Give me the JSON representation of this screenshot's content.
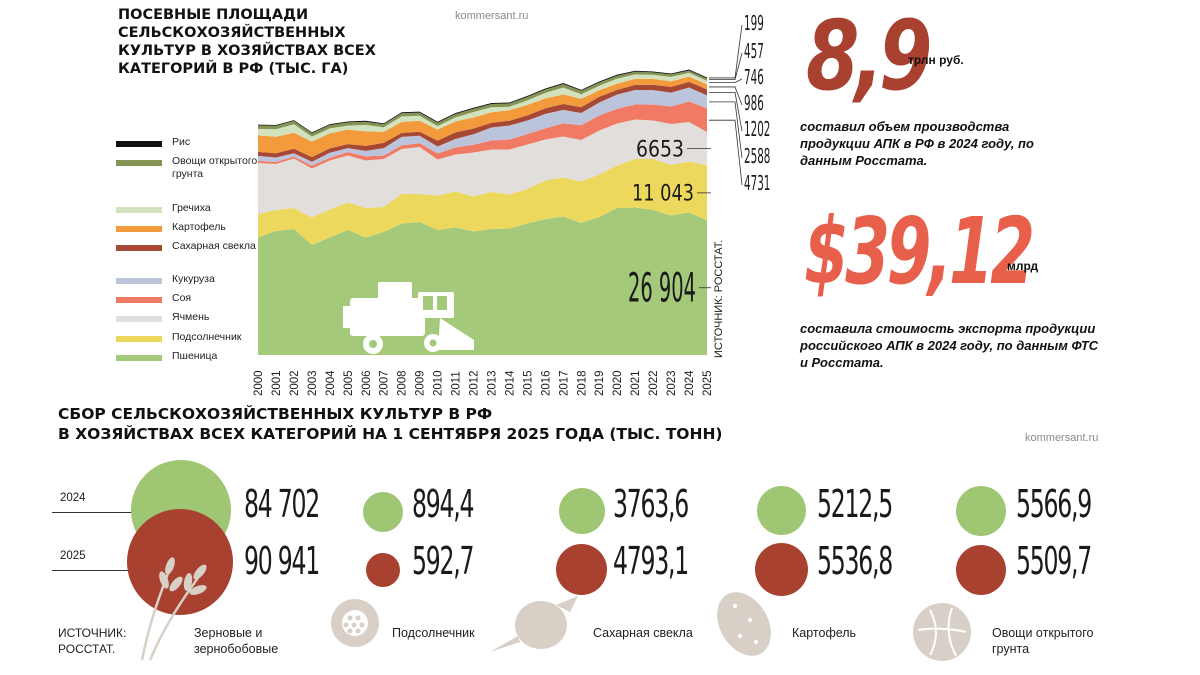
{
  "site": "kommersant.ru",
  "area_chart": {
    "title": "ПОСЕВНЫЕ ПЛОЩАДИ СЕЛЬСКОХОЗЯЙСТВЕННЫХ КУЛЬТУР В ХОЗЯЙСТВАХ ВСЕХ КАТЕГОРИЙ В РФ (ТЫС. ГА)",
    "source": "ИСТОЧНИК: РОССТАТ."
  },
  "chart_data": {
    "type": "area",
    "stacked": true,
    "x": [
      "2000",
      "2001",
      "2002",
      "2003",
      "2004",
      "2005",
      "2006",
      "2007",
      "2008",
      "2009",
      "2010",
      "2011",
      "2012",
      "2013",
      "2014",
      "2015",
      "2016",
      "2017",
      "2018",
      "2019",
      "2020",
      "2021",
      "2022",
      "2023",
      "2024",
      "2025"
    ],
    "series": [
      {
        "name": "Пшеница",
        "color": "#a4c97a",
        "values": [
          23500,
          24800,
          25200,
          22000,
          23500,
          25000,
          23500,
          24600,
          26300,
          26600,
          25000,
          25500,
          24700,
          25200,
          25300,
          26300,
          27200,
          27700,
          26400,
          27600,
          29400,
          29500,
          29000,
          27900,
          28500,
          26904
        ]
      },
      {
        "name": "Подсолнечник",
        "color": "#ecd85c",
        "values": [
          4700,
          4200,
          4200,
          5500,
          5600,
          5500,
          5900,
          5000,
          5900,
          5600,
          6900,
          7200,
          7000,
          7400,
          6800,
          6900,
          7700,
          7800,
          8300,
          8500,
          8500,
          9700,
          10200,
          10100,
          10200,
          11043
        ]
      },
      {
        "name": "Ячмень",
        "color": "#e2dedb",
        "values": [
          10200,
          9200,
          9900,
          9800,
          9800,
          9400,
          9500,
          9600,
          9000,
          9400,
          7200,
          7400,
          8800,
          8500,
          9000,
          8900,
          8200,
          8200,
          8300,
          8800,
          8400,
          7900,
          7700,
          8200,
          7900,
          6653
        ]
      },
      {
        "name": "Соя",
        "color": "#f07a64",
        "values": [
          420,
          400,
          410,
          560,
          550,
          680,
          820,
          680,
          730,
          740,
          1210,
          1420,
          1550,
          1800,
          2000,
          2100,
          2230,
          2620,
          2950,
          3000,
          2940,
          3000,
          3170,
          3500,
          4100,
          4731
        ]
      },
      {
        "name": "Кукуруза",
        "color": "#bcc4dc",
        "values": [
          1000,
          900,
          650,
          800,
          1000,
          800,
          1100,
          1500,
          1700,
          1500,
          1400,
          1700,
          2100,
          2600,
          2800,
          2700,
          2900,
          2700,
          2450,
          2600,
          2860,
          2890,
          2900,
          2780,
          2800,
          2588
        ]
      },
      {
        "name": "Сахарная свекла",
        "color": "#a74834",
        "values": [
          800,
          850,
          890,
          920,
          880,
          800,
          1000,
          1050,
          800,
          800,
          1170,
          1300,
          1150,
          940,
          950,
          1030,
          1110,
          1190,
          1150,
          1150,
          930,
          1030,
          1090,
          1150,
          1130,
          1202
        ]
      },
      {
        "name": "Картофель",
        "color": "#f29a3c",
        "values": [
          3300,
          3300,
          3200,
          3100,
          3000,
          2900,
          2900,
          2200,
          2200,
          2200,
          2200,
          2200,
          2200,
          2100,
          2100,
          2100,
          1980,
          1900,
          1700,
          1300,
          1250,
          1200,
          1160,
          1100,
          1040,
          986
        ]
      },
      {
        "name": "Гречиха",
        "color": "#d2e2bc",
        "values": [
          1300,
          1500,
          1700,
          1000,
          1000,
          800,
          1300,
          900,
          1100,
          1000,
          700,
          800,
          1100,
          1000,
          700,
          900,
          1100,
          1400,
          900,
          900,
          1000,
          900,
          800,
          900,
          760,
          746
        ]
      },
      {
        "name": "Овощи открытого грунта",
        "color": "#839455",
        "values": [
          700,
          710,
          680,
          680,
          670,
          650,
          640,
          620,
          640,
          640,
          660,
          670,
          650,
          660,
          670,
          690,
          690,
          700,
          690,
          650,
          600,
          550,
          510,
          490,
          470,
          457
        ]
      },
      {
        "name": "Рис",
        "color": "#111111",
        "values": [
          165,
          150,
          150,
          170,
          170,
          170,
          180,
          180,
          180,
          200,
          200,
          200,
          200,
          190,
          190,
          200,
          200,
          190,
          190,
          190,
          190,
          190,
          180,
          180,
          190,
          199
        ]
      }
    ],
    "end_labels": [
      "199",
      "457",
      "746",
      "986",
      "1202",
      "2588",
      "4731",
      "6653",
      "11 043",
      "26 904"
    ]
  },
  "stats": {
    "production_value": "8,9",
    "production_unit": "трлн руб.",
    "production_text": "составил объем производства продукции АПК в РФ в 2024 году, по данным Росстата.",
    "export_value": "$39,12",
    "export_unit": "млрд",
    "export_text": "составила стоимость экспорта продукции российского АПК в 2024 году, по данным ФТС и Росстата."
  },
  "harvest": {
    "title_line1": "СБОР СЕЛЬСКОХОЗЯЙСТВЕННЫХ КУЛЬТУР В РФ",
    "title_line2": "В ХОЗЯЙСТВАХ ВСЕХ КАТЕГОРИЙ НА 1 СЕНТЯБРЯ 2025 ГОДА (ТЫС. ТОНН)",
    "year_2024": "2024",
    "year_2025": "2025",
    "source": "ИСТОЧНИК: РОССТАТ.",
    "color_2024": "#9fc672",
    "color_2025": "#a8412f",
    "crops": [
      {
        "label": "Зерновые и зернобобовые",
        "v2024": "84 702",
        "v2025": "90 941",
        "icon": "wheat-icon"
      },
      {
        "label": "Подсолнечник",
        "v2024": "894,4",
        "v2025": "592,7",
        "icon": "sunflower-icon"
      },
      {
        "label": "Сахарная свекла",
        "v2024": "3763,6",
        "v2025": "4793,1",
        "icon": "beet-icon"
      },
      {
        "label": "Картофель",
        "v2024": "5212,5",
        "v2025": "5536,8",
        "icon": "potato-icon"
      },
      {
        "label": "Овощи открытого грунта",
        "v2024": "5566,9",
        "v2025": "5509,7",
        "icon": "cabbage-icon"
      }
    ]
  }
}
